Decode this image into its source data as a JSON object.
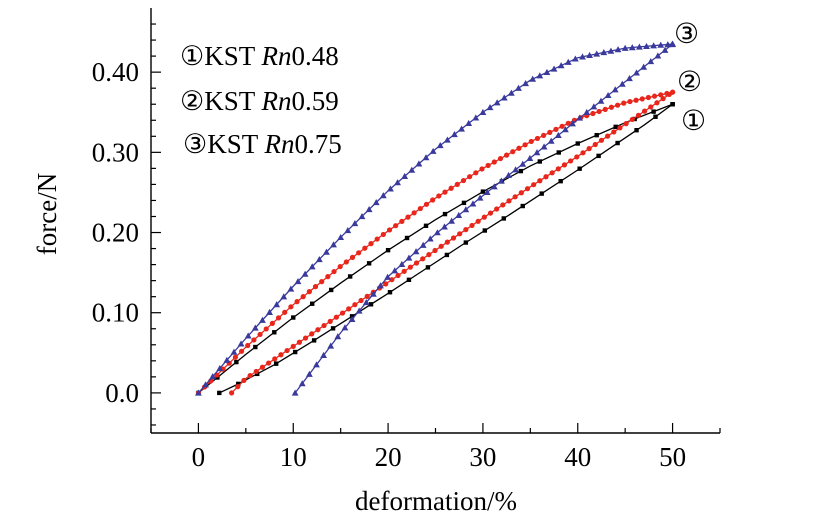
{
  "chart_data": {
    "type": "scatter",
    "xlabel": "deformation/%",
    "ylabel": "force/N",
    "xlim": [
      -5,
      55
    ],
    "ylim": [
      -0.05,
      0.48
    ],
    "x_ticks": [
      {
        "value": 0,
        "label": "0"
      },
      {
        "value": 10,
        "label": "10"
      },
      {
        "value": 20,
        "label": "20"
      },
      {
        "value": 30,
        "label": "30"
      },
      {
        "value": 40,
        "label": "40"
      },
      {
        "value": 50,
        "label": "50"
      }
    ],
    "y_ticks": [
      {
        "value": 0.0,
        "label": "0.0"
      },
      {
        "value": 0.1,
        "label": "0.10"
      },
      {
        "value": 0.2,
        "label": "0.20"
      },
      {
        "value": 0.3,
        "label": "0.30"
      },
      {
        "value": 0.4,
        "label": "0.40"
      }
    ],
    "legend": [
      {
        "symbol": "①",
        "name": "KST",
        "rn": "Rn",
        "value": "0.48"
      },
      {
        "symbol": "②",
        "name": "KST",
        "rn": "Rn",
        "value": "0.59"
      },
      {
        "symbol": "③",
        "name": "KST",
        "rn": "Rn",
        "value": "0.75"
      }
    ],
    "series": [
      {
        "symbol": "①",
        "marker": "square",
        "color": "#000000",
        "loading": {
          "x": [
            0,
            5,
            10,
            15,
            20,
            25,
            30,
            35,
            40,
            45,
            50
          ],
          "y": [
            0.0,
            0.048,
            0.094,
            0.137,
            0.178,
            0.216,
            0.251,
            0.283,
            0.311,
            0.337,
            0.36
          ]
        },
        "unloading": {
          "x": [
            50,
            47,
            44,
            40,
            36,
            32,
            28,
            24,
            20,
            16,
            12,
            8,
            4,
            2.2
          ],
          "y": [
            0.36,
            0.334,
            0.31,
            0.278,
            0.247,
            0.216,
            0.186,
            0.155,
            0.124,
            0.094,
            0.064,
            0.035,
            0.01,
            0.0
          ]
        }
      },
      {
        "symbol": "②",
        "marker": "circle",
        "color": "#e8261c",
        "loading": {
          "x": [
            0,
            5,
            10,
            15,
            20,
            25,
            30,
            35,
            40,
            45,
            50
          ],
          "y": [
            0.0,
            0.057,
            0.11,
            0.158,
            0.202,
            0.243,
            0.28,
            0.313,
            0.342,
            0.362,
            0.375
          ]
        },
        "unloading": {
          "x": [
            50,
            45,
            40,
            35,
            30,
            25,
            20,
            15,
            10,
            5,
            3.5
          ],
          "y": [
            0.375,
            0.335,
            0.295,
            0.257,
            0.218,
            0.178,
            0.138,
            0.098,
            0.058,
            0.018,
            0.0
          ]
        }
      },
      {
        "symbol": "③",
        "marker": "triangle",
        "color": "#3a3a9c",
        "loading": {
          "x": [
            0,
            5,
            10,
            15,
            20,
            25,
            30,
            35,
            40,
            45,
            50
          ],
          "y": [
            0.0,
            0.068,
            0.133,
            0.194,
            0.252,
            0.304,
            0.35,
            0.39,
            0.418,
            0.43,
            0.435
          ]
        },
        "unloading": {
          "x": [
            50,
            45,
            40,
            35,
            30,
            25,
            20,
            15,
            10.2
          ],
          "y": [
            0.435,
            0.388,
            0.341,
            0.293,
            0.246,
            0.198,
            0.145,
            0.075,
            0.0
          ]
        }
      }
    ]
  }
}
